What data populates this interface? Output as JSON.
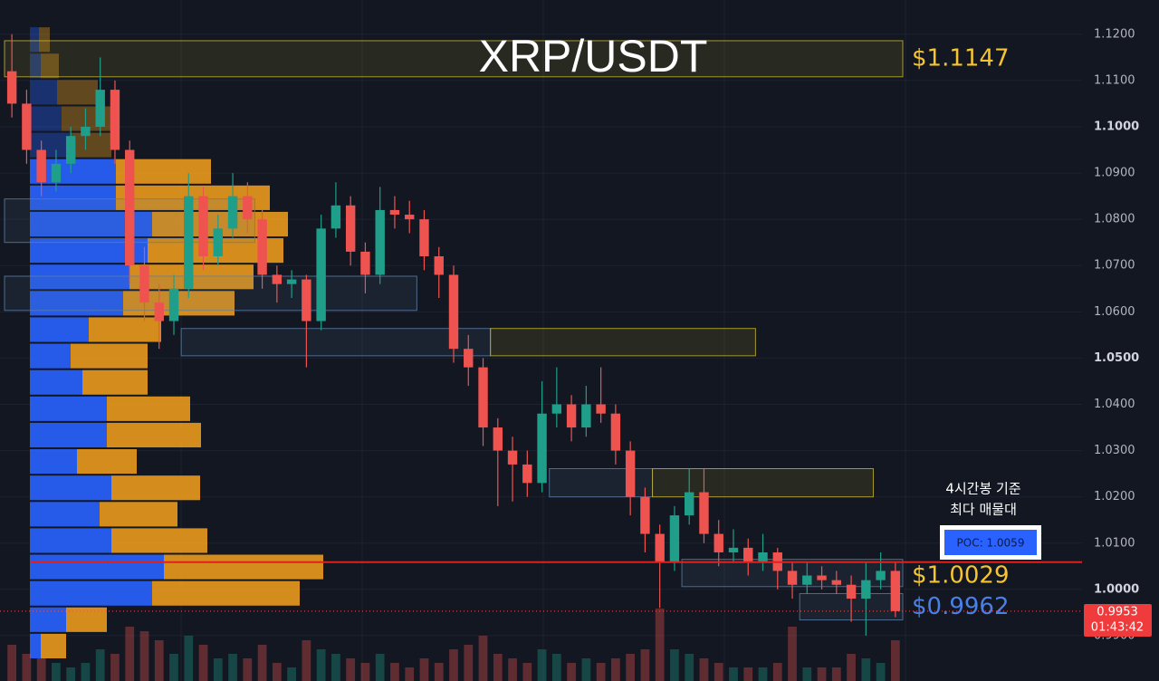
{
  "chart_data": {
    "type": "candlestick",
    "title": "XRP/USDT",
    "ylim": [
      0.9802,
      1.1274
    ],
    "yticks": [
      {
        "value": 1.12,
        "label": "1.1200"
      },
      {
        "value": 1.11,
        "label": "1.1100"
      },
      {
        "value": 1.1,
        "label": "1.1000"
      },
      {
        "value": 1.09,
        "label": "1.0900"
      },
      {
        "value": 1.08,
        "label": "1.0800"
      },
      {
        "value": 1.07,
        "label": "1.0700"
      },
      {
        "value": 1.06,
        "label": "1.0600"
      },
      {
        "value": 1.05,
        "label": "1.0500"
      },
      {
        "value": 1.04,
        "label": "1.0400"
      },
      {
        "value": 1.03,
        "label": "1.0300"
      },
      {
        "value": 1.02,
        "label": "1.0200"
      },
      {
        "value": 1.01,
        "label": "1.0100"
      },
      {
        "value": 1.0,
        "label": "1.0000"
      },
      {
        "value": 0.99,
        "label": "0.9900"
      }
    ],
    "bold_ticks": [
      1.1,
      1.05,
      1.0
    ],
    "grid": true,
    "up_color": "#1f9e8a",
    "down_color": "#ef5350",
    "candles": [
      [
        1.112,
        1.12,
        1.102,
        1.105
      ],
      [
        1.105,
        1.108,
        1.092,
        1.095
      ],
      [
        1.095,
        1.097,
        1.085,
        1.088
      ],
      [
        1.088,
        1.095,
        1.086,
        1.092
      ],
      [
        1.092,
        1.1,
        1.09,
        1.098
      ],
      [
        1.098,
        1.104,
        1.095,
        1.1
      ],
      [
        1.1,
        1.115,
        1.098,
        1.108
      ],
      [
        1.108,
        1.11,
        1.092,
        1.095
      ],
      [
        1.095,
        1.097,
        1.066,
        1.07
      ],
      [
        1.07,
        1.074,
        1.058,
        1.062
      ],
      [
        1.062,
        1.066,
        1.052,
        1.058
      ],
      [
        1.058,
        1.068,
        1.055,
        1.065
      ],
      [
        1.065,
        1.09,
        1.063,
        1.085
      ],
      [
        1.085,
        1.087,
        1.069,
        1.072
      ],
      [
        1.072,
        1.081,
        1.07,
        1.078
      ],
      [
        1.078,
        1.09,
        1.076,
        1.085
      ],
      [
        1.085,
        1.088,
        1.077,
        1.08
      ],
      [
        1.08,
        1.082,
        1.065,
        1.068
      ],
      [
        1.068,
        1.07,
        1.062,
        1.066
      ],
      [
        1.066,
        1.069,
        1.063,
        1.067
      ],
      [
        1.067,
        1.068,
        1.048,
        1.058
      ],
      [
        1.058,
        1.081,
        1.056,
        1.078
      ],
      [
        1.078,
        1.088,
        1.076,
        1.083
      ],
      [
        1.083,
        1.085,
        1.07,
        1.073
      ],
      [
        1.073,
        1.075,
        1.064,
        1.068
      ],
      [
        1.068,
        1.087,
        1.066,
        1.082
      ],
      [
        1.082,
        1.085,
        1.078,
        1.081
      ],
      [
        1.081,
        1.084,
        1.077,
        1.08
      ],
      [
        1.08,
        1.082,
        1.069,
        1.072
      ],
      [
        1.072,
        1.074,
        1.063,
        1.068
      ],
      [
        1.068,
        1.07,
        1.049,
        1.052
      ],
      [
        1.052,
        1.055,
        1.044,
        1.048
      ],
      [
        1.048,
        1.05,
        1.031,
        1.035
      ],
      [
        1.035,
        1.037,
        1.018,
        1.03
      ],
      [
        1.03,
        1.033,
        1.019,
        1.027
      ],
      [
        1.027,
        1.03,
        1.02,
        1.023
      ],
      [
        1.023,
        1.045,
        1.021,
        1.038
      ],
      [
        1.038,
        1.048,
        1.035,
        1.04
      ],
      [
        1.04,
        1.042,
        1.032,
        1.035
      ],
      [
        1.035,
        1.044,
        1.033,
        1.04
      ],
      [
        1.04,
        1.048,
        1.036,
        1.038
      ],
      [
        1.038,
        1.04,
        1.027,
        1.03
      ],
      [
        1.03,
        1.032,
        1.016,
        1.02
      ],
      [
        1.02,
        1.022,
        1.008,
        1.012
      ],
      [
        1.012,
        1.014,
        0.996,
        1.006
      ],
      [
        1.006,
        1.018,
        1.004,
        1.016
      ],
      [
        1.016,
        1.026,
        1.014,
        1.021
      ],
      [
        1.021,
        1.026,
        1.01,
        1.012
      ],
      [
        1.012,
        1.015,
        1.005,
        1.008
      ],
      [
        1.008,
        1.013,
        1.006,
        1.009
      ],
      [
        1.009,
        1.011,
        1.003,
        1.006
      ],
      [
        1.006,
        1.012,
        1.004,
        1.008
      ],
      [
        1.008,
        1.009,
        1.0,
        1.004
      ],
      [
        1.004,
        1.006,
        0.998,
        1.001
      ],
      [
        1.001,
        1.006,
        0.999,
        1.003
      ],
      [
        1.003,
        1.005,
        1.0,
        1.002
      ],
      [
        1.002,
        1.004,
        0.999,
        1.001
      ],
      [
        1.001,
        1.003,
        0.993,
        0.998
      ],
      [
        0.998,
        1.006,
        0.99,
        1.002
      ],
      [
        1.002,
        1.008,
        1.0,
        1.004
      ],
      [
        1.004,
        1.006,
        0.994,
        0.9953
      ]
    ],
    "volume": [
      40,
      30,
      25,
      20,
      15,
      20,
      35,
      30,
      60,
      55,
      45,
      30,
      50,
      40,
      25,
      30,
      25,
      40,
      20,
      15,
      45,
      35,
      30,
      25,
      20,
      30,
      20,
      15,
      25,
      20,
      35,
      40,
      50,
      30,
      25,
      20,
      35,
      30,
      20,
      25,
      20,
      25,
      30,
      35,
      80,
      35,
      30,
      25,
      20,
      15,
      15,
      15,
      20,
      60,
      15,
      15,
      15,
      30,
      25,
      20,
      45
    ],
    "volume_profile": {
      "bins": [
        1.1217,
        1.116,
        1.1103,
        1.1046,
        1.0989,
        1.0932,
        1.0875,
        1.0818,
        1.0761,
        1.0704,
        1.0647,
        1.059,
        1.0533,
        1.0476,
        1.0419,
        1.0362,
        1.0305,
        1.0248,
        1.0191,
        1.0134,
        1.0077,
        1.002,
        0.9963,
        0.9906,
        0.9849
      ],
      "buy": [
        10,
        12,
        30,
        35,
        45,
        95,
        95,
        135,
        130,
        110,
        103,
        65,
        45,
        58,
        85,
        85,
        52,
        90,
        77,
        90,
        148,
        135,
        40,
        12
      ],
      "sell": [
        12,
        20,
        45,
        60,
        45,
        105,
        170,
        150,
        150,
        137,
        123,
        80,
        85,
        72,
        92,
        104,
        66,
        98,
        86,
        106,
        176,
        163,
        45,
        28
      ],
      "buy_color": "#2962ff",
      "sell_color": "#f7a21b"
    },
    "zones": [
      {
        "from": 0,
        "to": 61,
        "low": 1.1108,
        "high": 1.1186,
        "color": "#c9b82c"
      },
      {
        "from": 0,
        "to": 17,
        "low": 1.075,
        "high": 1.0844,
        "color": "#5b7fa8"
      },
      {
        "from": 0,
        "to": 28,
        "low": 1.0603,
        "high": 1.0677,
        "color": "#5b7fa8"
      },
      {
        "from": 12,
        "to": 33,
        "low": 1.0505,
        "high": 1.0564,
        "color": "#5b7fa8"
      },
      {
        "from": 33,
        "to": 51,
        "low": 1.0505,
        "high": 1.0564,
        "color": "#c9b82c"
      },
      {
        "from": 37,
        "to": 44,
        "low": 1.02,
        "high": 1.0261,
        "color": "#5b7fa8"
      },
      {
        "from": 44,
        "to": 59,
        "low": 1.02,
        "high": 1.0261,
        "color": "#c9b82c"
      },
      {
        "from": 46,
        "to": 61,
        "low": 1.0006,
        "high": 1.0065,
        "color": "#5b7fa8"
      },
      {
        "from": 54,
        "to": 61,
        "low": 0.9934,
        "high": 0.9991,
        "color": "#5b7fa8"
      }
    ],
    "poc": 1.0059,
    "poc_label": "POC: 1.0059",
    "poc_note": [
      "4시간봉 기준",
      "최다 매물대"
    ],
    "annotations": [
      {
        "text": "$1.1147",
        "price": 1.1147,
        "color": "#f7c431"
      },
      {
        "text": "$1.0029",
        "price": 1.0029,
        "color": "#f7c431"
      },
      {
        "text": "$0.9962",
        "price": 0.9962,
        "color": "#4a7fe8"
      }
    ],
    "last_price": 0.9953,
    "countdown": "01:43:42"
  }
}
